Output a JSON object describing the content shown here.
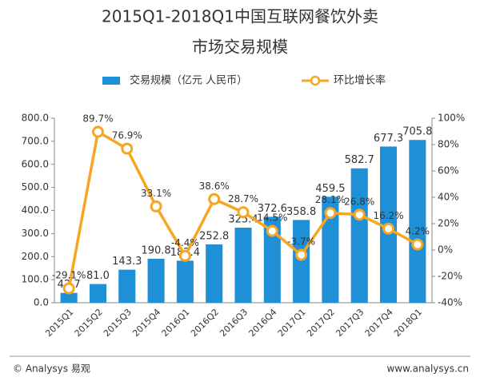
{
  "chart_data": {
    "type": "bar-line",
    "title": [
      "2015Q1-2018Q1中国互联网餐饮外卖",
      "市场交易规模"
    ],
    "categories": [
      "2015Q1",
      "2015Q2",
      "2015Q3",
      "2015Q4",
      "2016Q1",
      "2016Q2",
      "2016Q3",
      "2016Q4",
      "2017Q1",
      "2017Q2",
      "2017Q3",
      "2017Q4",
      "2018Q1"
    ],
    "series": [
      {
        "name": "交易规模（亿元 人民币）",
        "type": "bar",
        "color": "#1f8fd6",
        "values": [
          42.7,
          81.0,
          143.3,
          190.8,
          182.4,
          252.8,
          325.4,
          372.6,
          358.8,
          459.5,
          582.7,
          677.3,
          705.8
        ],
        "value_labels": [
          "42.7",
          "81.0",
          "143.3",
          "190.8",
          "182.4",
          "252.8",
          "325.4",
          "372.6",
          "358.8",
          "459.5",
          "582.7",
          "677.3",
          "705.8"
        ]
      },
      {
        "name": "环比增长率",
        "type": "line",
        "axis": "y2",
        "color": "#f5a623",
        "values": [
          -29.1,
          89.7,
          76.9,
          33.1,
          -4.4,
          38.6,
          28.7,
          14.5,
          -3.7,
          28.1,
          26.8,
          16.2,
          4.2
        ],
        "value_labels": [
          "-29.1%",
          "89.7%",
          "76.9%",
          "33.1%",
          "-4.4%",
          "38.6%",
          "28.7%",
          "14.5%",
          "-3.7%",
          "28.1%",
          "26.8%",
          "16.2%",
          "4.2%"
        ]
      }
    ],
    "ylim": [
      0,
      800
    ],
    "yticks": [
      {
        "value": 0,
        "label": "0.0"
      },
      {
        "value": 100,
        "label": "100.0"
      },
      {
        "value": 200,
        "label": "200.0"
      },
      {
        "value": 300,
        "label": "300.0"
      },
      {
        "value": 400,
        "label": "400.0"
      },
      {
        "value": 500,
        "label": "500.0"
      },
      {
        "value": 600,
        "label": "600.0"
      },
      {
        "value": 700,
        "label": "700.0"
      },
      {
        "value": 800,
        "label": "800.0"
      }
    ],
    "y2lim": [
      -40,
      100
    ],
    "y2ticks": [
      {
        "value": -40,
        "label": "-40%"
      },
      {
        "value": -20,
        "label": "-20%"
      },
      {
        "value": 0,
        "label": "0%"
      },
      {
        "value": 20,
        "label": "20%"
      },
      {
        "value": 40,
        "label": "40%"
      },
      {
        "value": 60,
        "label": "60%"
      },
      {
        "value": 80,
        "label": "80%"
      },
      {
        "value": 100,
        "label": "100%"
      }
    ],
    "legend": "top",
    "footer": {
      "left": "© Analysys 易观",
      "right": "www.analysys.cn"
    }
  }
}
